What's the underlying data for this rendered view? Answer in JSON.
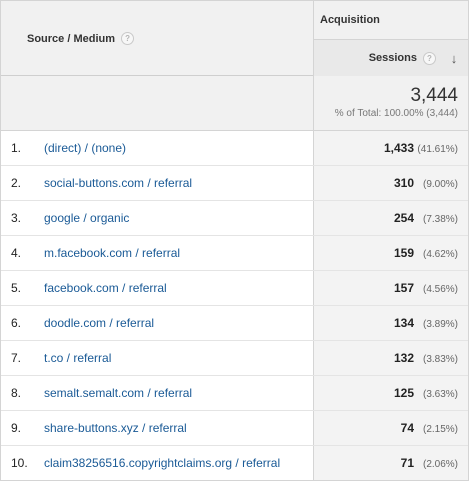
{
  "table": {
    "dimension_label": "Source / Medium",
    "group_label": "Acquisition",
    "metric_label": "Sessions",
    "help_glyph": "?",
    "sort_glyph": "↓",
    "totals": {
      "value": "3,444",
      "pct": "% of Total: 100.00% (3,444)"
    },
    "rows": [
      {
        "index": "1.",
        "source": "(direct) / (none)",
        "sessions": "1,433",
        "pct": "(41.61%)"
      },
      {
        "index": "2.",
        "source": "social-buttons.com / referral",
        "sessions": "310",
        "pct": "(9.00%)"
      },
      {
        "index": "3.",
        "source": "google / organic",
        "sessions": "254",
        "pct": "(7.38%)"
      },
      {
        "index": "4.",
        "source": "m.facebook.com / referral",
        "sessions": "159",
        "pct": "(4.62%)"
      },
      {
        "index": "5.",
        "source": "facebook.com / referral",
        "sessions": "157",
        "pct": "(4.56%)"
      },
      {
        "index": "6.",
        "source": "doodle.com / referral",
        "sessions": "134",
        "pct": "(3.89%)"
      },
      {
        "index": "7.",
        "source": "t.co / referral",
        "sessions": "132",
        "pct": "(3.83%)"
      },
      {
        "index": "8.",
        "source": "semalt.semalt.com / referral",
        "sessions": "125",
        "pct": "(3.63%)"
      },
      {
        "index": "9.",
        "source": "share-buttons.xyz / referral",
        "sessions": "74",
        "pct": "(2.15%)"
      },
      {
        "index": "10.",
        "source": "claim38256516.copyrightclaims.org / referral",
        "sessions": "71",
        "pct": "(2.06%)"
      }
    ]
  }
}
